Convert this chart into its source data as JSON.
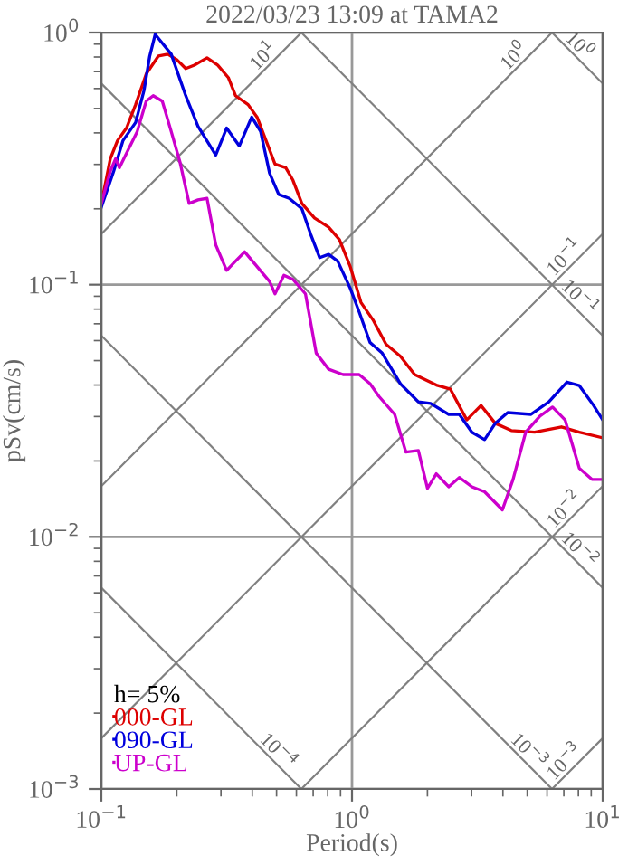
{
  "chart_data": {
    "type": "line",
    "title": "2022/03/23 13:09 at TAMA2",
    "xlabel": "Period(s)",
    "ylabel": "pSv(cm/s)",
    "legend_title": "h= 5%",
    "legend": "bottom left",
    "log": "xy",
    "grid": true,
    "xlim": [
      0.1,
      10
    ],
    "ylim": [
      0.001,
      1
    ],
    "xticks": [
      {
        "value": 0.1,
        "label": "10$^{−1}$"
      },
      {
        "value": 1,
        "label": "10$^{0}$"
      },
      {
        "value": 10,
        "label": "10$^{1}$"
      }
    ],
    "yticks": [
      {
        "value": 0.001,
        "label": "10$^{−3}$"
      },
      {
        "value": 0.01,
        "label": "10$^{−2}$"
      },
      {
        "value": 0.1,
        "label": "10$^{−1}$"
      },
      {
        "value": 1,
        "label": "10$^{0}$"
      }
    ],
    "series": [
      {
        "name": "10$^{1}$",
        "color": "#808080",
        "x": [
          0.1,
          0.628
        ],
        "values": [
          0.159,
          1
        ]
      },
      {
        "name": "10$^{0}$",
        "color": "#808080",
        "x": [
          0.1,
          6.28
        ],
        "values": [
          0.0159,
          1
        ]
      },
      {
        "name": "10$^{−1}$",
        "color": "#808080",
        "x": [
          0.1,
          10
        ],
        "values": [
          0.00159,
          0.159
        ]
      },
      {
        "name": "10$^{−2}$",
        "color": "#808080",
        "x": [
          0.628,
          10
        ],
        "values": [
          0.001,
          0.0159
        ]
      },
      {
        "name": "10$^{−3}$",
        "color": "#808080",
        "x": [
          6.28,
          10
        ],
        "values": [
          0.001,
          0.00159
        ]
      },
      {
        "name": "10$^{0}$",
        "color": "#808080",
        "x": [
          6.28,
          10
        ],
        "values": [
          1,
          0.628
        ]
      },
      {
        "name": "10$^{−1}$",
        "color": "#808080",
        "x": [
          0.628,
          10
        ],
        "values": [
          1,
          0.0628
        ]
      },
      {
        "name": "10$^{−2}$",
        "color": "#808080",
        "x": [
          0.1,
          10
        ],
        "values": [
          0.628,
          0.00628
        ]
      },
      {
        "name": "10$^{−3}$",
        "color": "#808080",
        "x": [
          0.1,
          6.28
        ],
        "values": [
          0.0628,
          0.001
        ]
      },
      {
        "name": "10$^{−4}$",
        "color": "#808080",
        "x": [
          0.1,
          0.628
        ],
        "values": [
          0.00628,
          0.001
        ]
      },
      {
        "name": "000-GL",
        "color": "#dd0000",
        "x": [
          0.1,
          0.1086,
          0.116,
          0.126,
          0.137,
          0.151,
          0.169,
          0.184,
          0.2,
          0.217,
          0.235,
          0.264,
          0.291,
          0.321,
          0.343,
          0.385,
          0.418,
          0.454,
          0.493,
          0.544,
          0.581,
          0.631,
          0.708,
          0.807,
          0.891,
          0.984,
          1.086,
          1.218,
          1.367,
          1.56,
          1.778,
          2.17,
          2.47,
          2.87,
          3.27,
          3.73,
          4.32,
          5.35,
          6.85,
          8.07,
          10
        ],
        "values": [
          0.21,
          0.316,
          0.373,
          0.418,
          0.518,
          0.685,
          0.808,
          0.821,
          0.781,
          0.72,
          0.743,
          0.794,
          0.743,
          0.663,
          0.562,
          0.518,
          0.462,
          0.373,
          0.301,
          0.291,
          0.26,
          0.21,
          0.184,
          0.169,
          0.151,
          0.118,
          0.085,
          0.072,
          0.058,
          0.052,
          0.044,
          0.04,
          0.0385,
          0.0291,
          0.0332,
          0.0282,
          0.0264,
          0.026,
          0.0273,
          0.026,
          0.0247
        ]
      },
      {
        "name": "090-GL",
        "color": "#0000dd",
        "x": [
          0.1,
          0.112,
          0.122,
          0.137,
          0.148,
          0.156,
          0.164,
          0.19,
          0.217,
          0.243,
          0.286,
          0.316,
          0.355,
          0.398,
          0.432,
          0.469,
          0.51,
          0.562,
          0.631,
          0.685,
          0.743,
          0.807,
          0.877,
          0.984,
          1.068,
          1.18,
          1.32,
          1.56,
          1.84,
          2.06,
          2.43,
          2.68,
          3.01,
          3.38,
          3.73,
          4.18,
          5.18,
          6.1,
          7.2,
          8.07,
          9.2,
          10
        ],
        "values": [
          0.203,
          0.282,
          0.373,
          0.44,
          0.59,
          0.808,
          0.984,
          0.821,
          0.562,
          0.425,
          0.327,
          0.418,
          0.355,
          0.462,
          0.405,
          0.277,
          0.228,
          0.22,
          0.2,
          0.158,
          0.128,
          0.132,
          0.124,
          0.0968,
          0.078,
          0.059,
          0.0535,
          0.0405,
          0.0343,
          0.0338,
          0.0306,
          0.0306,
          0.026,
          0.0243,
          0.0282,
          0.0311,
          0.0306,
          0.0343,
          0.0411,
          0.0398,
          0.0332,
          0.0291
        ]
      },
      {
        "name": "UP-GL",
        "color": "#cc00cc",
        "x": [
          0.1,
          0.1086,
          0.114,
          0.118,
          0.128,
          0.139,
          0.151,
          0.161,
          0.175,
          0.19,
          0.206,
          0.224,
          0.243,
          0.264,
          0.286,
          0.316,
          0.343,
          0.373,
          0.418,
          0.469,
          0.493,
          0.535,
          0.581,
          0.652,
          0.72,
          0.807,
          0.921,
          1.068,
          1.18,
          1.28,
          1.48,
          1.64,
          1.84,
          2.0,
          2.17,
          2.43,
          2.68,
          3.01,
          3.38,
          3.98,
          4.39,
          4.93,
          5.62,
          6.31,
          7.08,
          8.07,
          9.06,
          10
        ],
        "values": [
          0.21,
          0.282,
          0.316,
          0.291,
          0.343,
          0.405,
          0.535,
          0.562,
          0.535,
          0.405,
          0.306,
          0.21,
          0.217,
          0.22,
          0.144,
          0.114,
          0.124,
          0.135,
          0.118,
          0.103,
          0.092,
          0.109,
          0.105,
          0.092,
          0.0535,
          0.0462,
          0.044,
          0.044,
          0.0405,
          0.0361,
          0.0306,
          0.0217,
          0.022,
          0.0156,
          0.0178,
          0.0158,
          0.0172,
          0.0158,
          0.0151,
          0.0128,
          0.0169,
          0.026,
          0.0301,
          0.0327,
          0.0291,
          0.0187,
          0.0169,
          0.0169
        ]
      }
    ]
  }
}
